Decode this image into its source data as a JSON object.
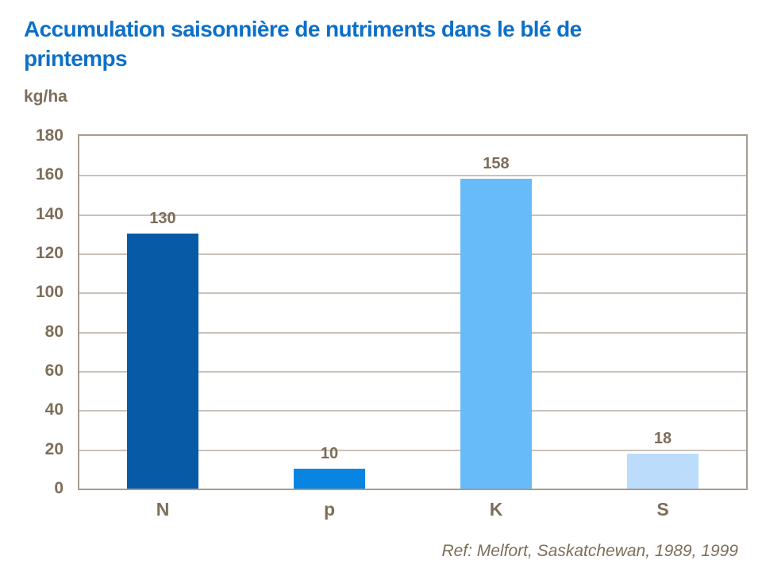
{
  "title": {
    "line1": "Accumulation saisonnière de nutriments dans le blé de",
    "line2": "printemps"
  },
  "chart_data": {
    "type": "bar",
    "title": "Accumulation saisonnière de nutriments dans le blé de printemps",
    "ylabel": "kg/ha",
    "categories": [
      "N",
      "p",
      "K",
      "S"
    ],
    "values": [
      130,
      10,
      158,
      18
    ],
    "bar_colors": [
      "#075AA6",
      "#0885E2",
      "#67BBF8",
      "#BBDDFB"
    ],
    "ylim": [
      0,
      180
    ],
    "yticks": [
      180,
      160,
      140,
      120,
      100,
      80,
      60,
      40,
      20,
      0
    ],
    "grid": true,
    "legend": "none"
  },
  "footer": {
    "reference": "Ref: Melfort, Saskatchewan, 1989, 1999"
  },
  "colors": {
    "title": "#0D70C8",
    "axis_text": "#7D6E58",
    "frame": "#A69C8F",
    "gridline": "#C9C2B9",
    "background": "#FFFFFF"
  }
}
